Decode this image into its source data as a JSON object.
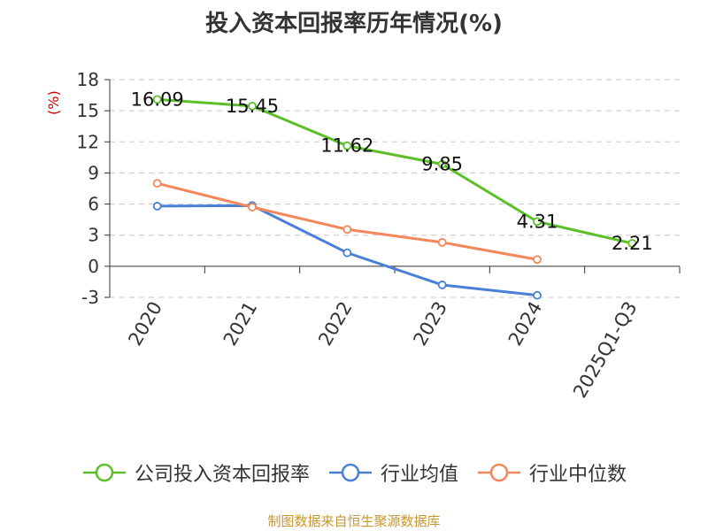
{
  "chart_data": {
    "type": "line",
    "title": "投入资本回报率历年情况(%)",
    "ylabel": "(%)",
    "xlabel": "",
    "categories": [
      "2020",
      "2021",
      "2022",
      "2023",
      "2024",
      "2025Q1-Q3"
    ],
    "ylim": [
      -3,
      18
    ],
    "yticks": [
      18,
      15,
      12,
      9,
      6,
      3,
      0,
      -3
    ],
    "grid": true,
    "legend_position": "bottom",
    "series": [
      {
        "name": "公司投入资本回报率",
        "color": "#5cbf28",
        "values": [
          16.09,
          15.45,
          11.62,
          9.85,
          4.31,
          2.21
        ],
        "labels": [
          "16.09",
          "15.45",
          "11.62",
          "9.85",
          "4.31",
          "2.21"
        ]
      },
      {
        "name": "行业均值",
        "color": "#4a7fd6",
        "values": [
          5.8,
          5.85,
          1.3,
          -1.8,
          -2.8,
          null
        ]
      },
      {
        "name": "行业中位数",
        "color": "#f4875a",
        "values": [
          8.0,
          5.7,
          3.55,
          2.3,
          0.65,
          null
        ]
      }
    ]
  },
  "source": "制图数据来自恒生聚源数据库"
}
